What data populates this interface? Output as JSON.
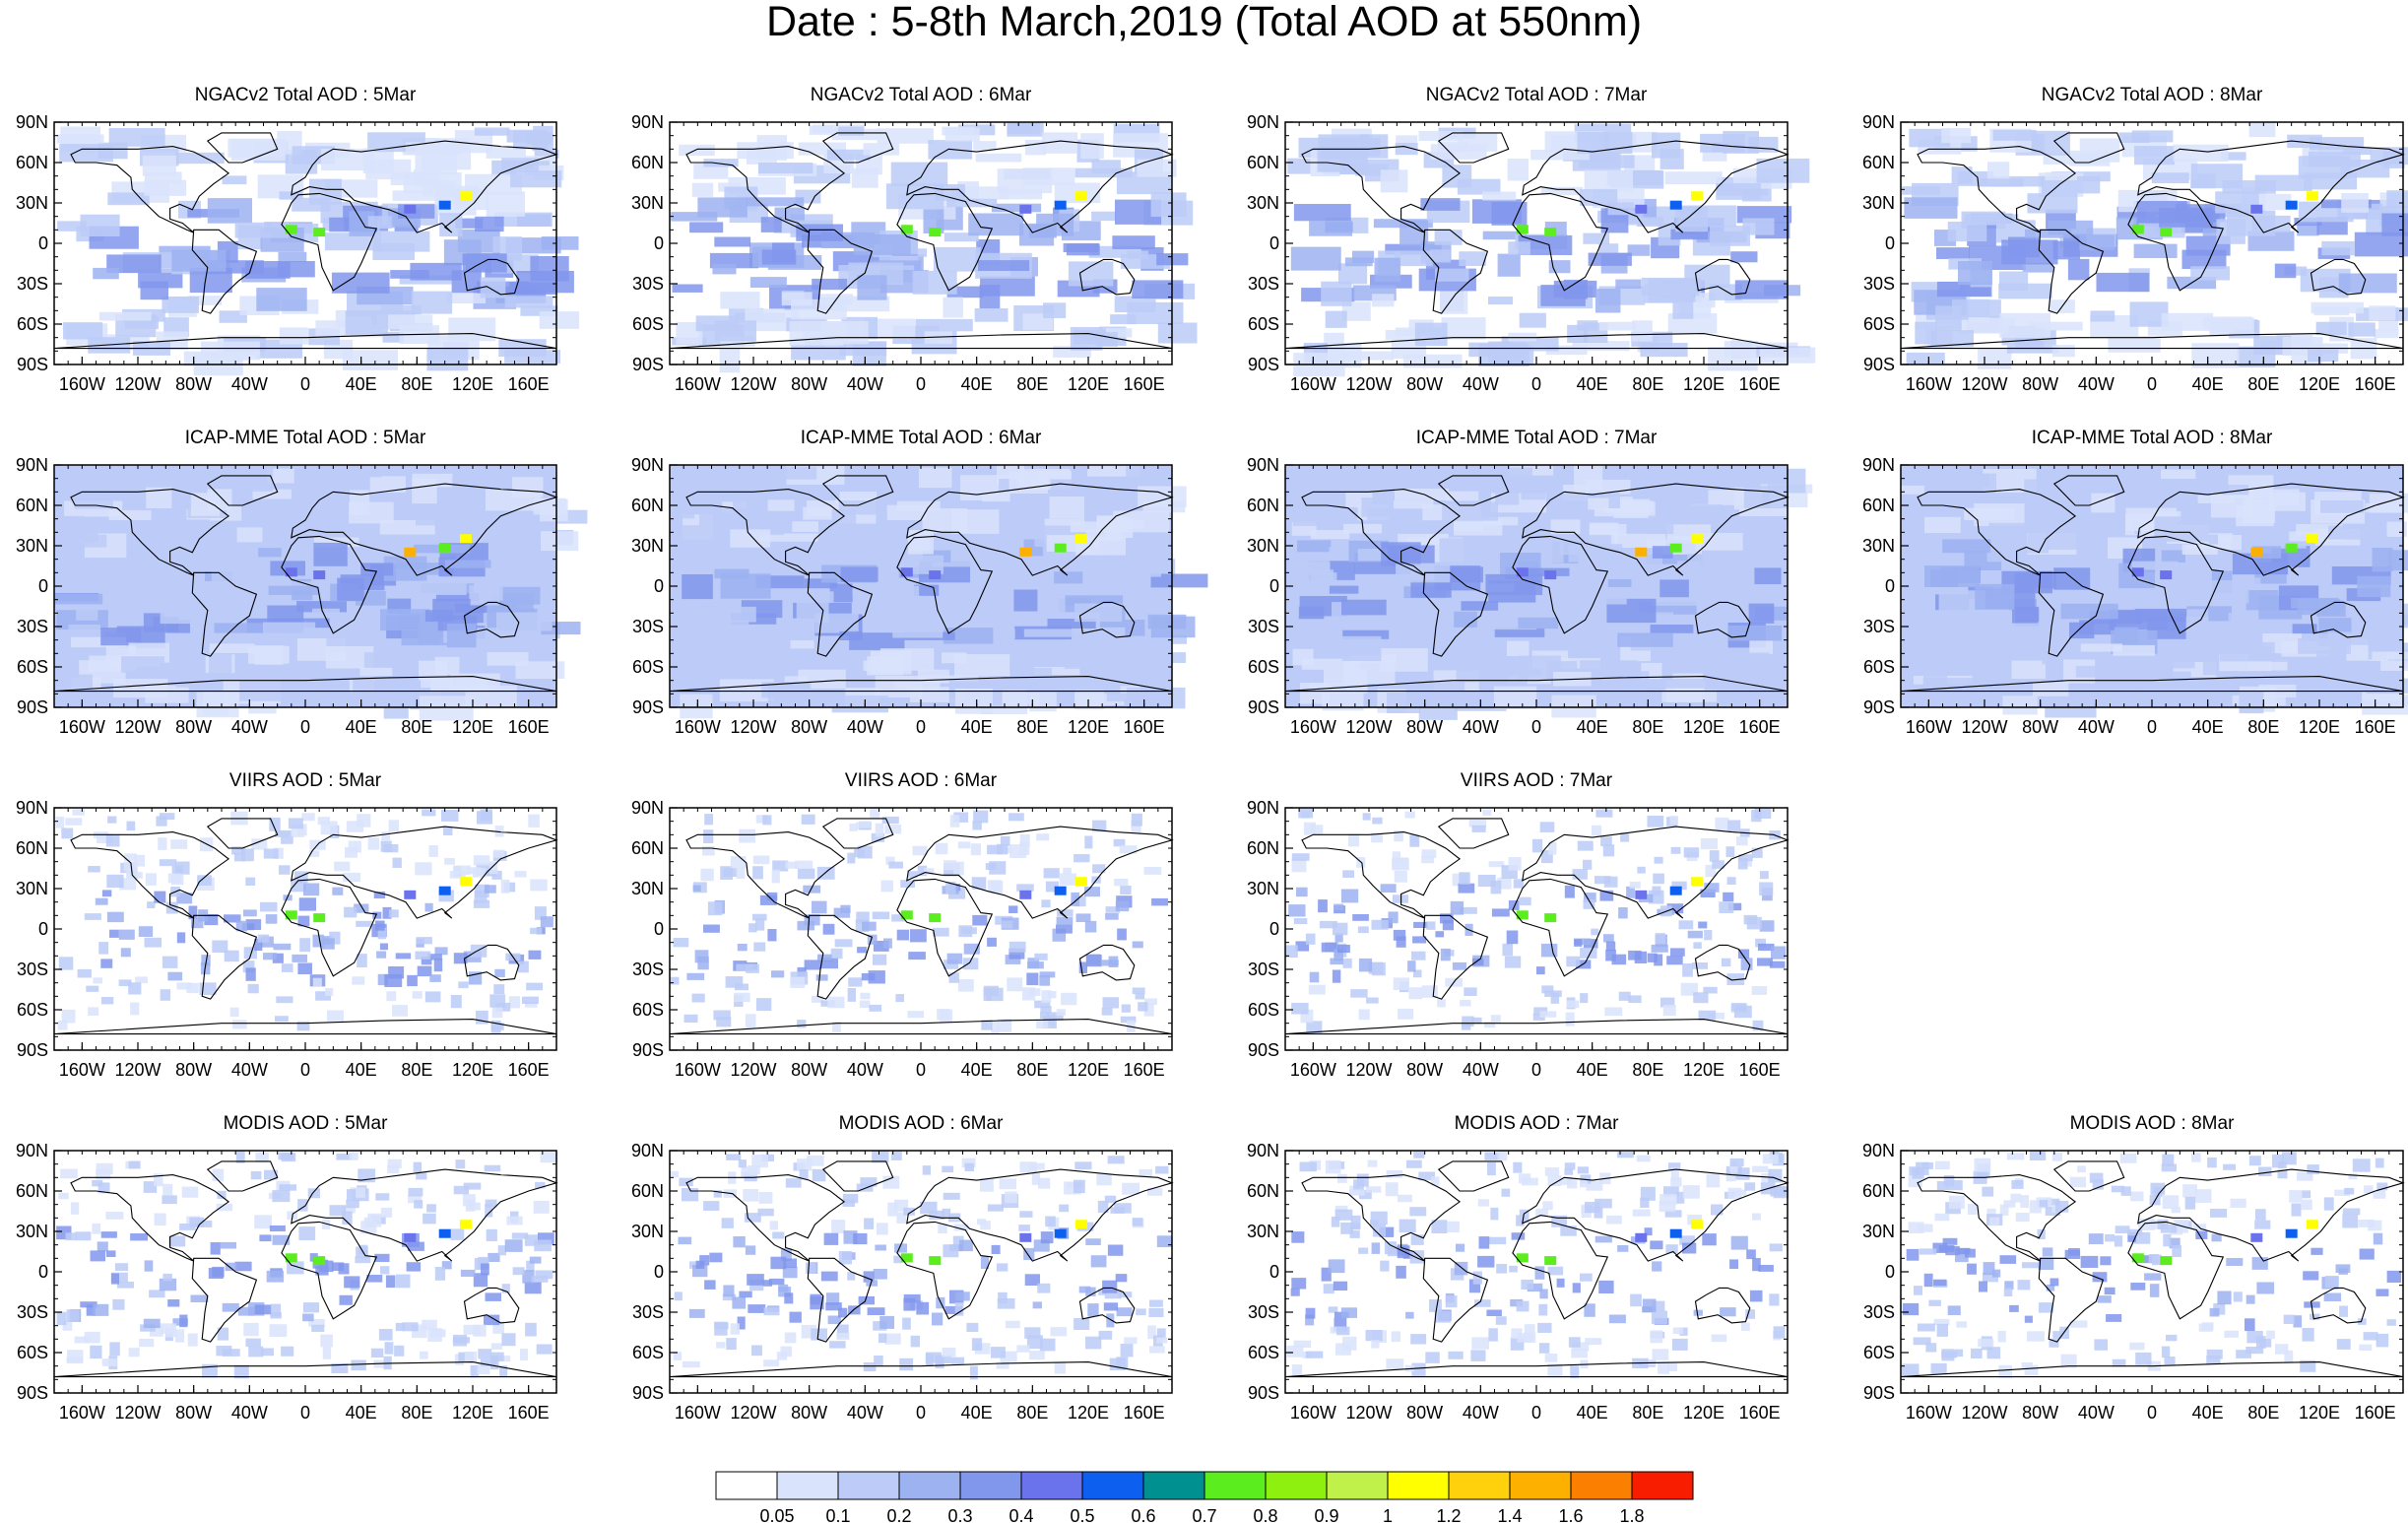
{
  "title": "Date : 5-8th March,2019 (Total AOD at 550nm)",
  "lat_labels": [
    "90N",
    "60N",
    "30N",
    "0",
    "30S",
    "60S",
    "90S"
  ],
  "lon_labels": [
    "160W",
    "120W",
    "80W",
    "40W",
    "0",
    "40E",
    "80E",
    "120E",
    "160E"
  ],
  "panels": [
    {
      "title": "NGACv2 Total AOD : 5Mar",
      "dataset": "NGACv2"
    },
    {
      "title": "NGACv2 Total AOD : 6Mar",
      "dataset": "NGACv2"
    },
    {
      "title": "NGACv2 Total AOD : 7Mar",
      "dataset": "NGACv2"
    },
    {
      "title": "NGACv2 Total AOD : 8Mar",
      "dataset": "NGACv2"
    },
    {
      "title": "ICAP-MME Total AOD : 5Mar",
      "dataset": "ICAP"
    },
    {
      "title": "ICAP-MME Total AOD : 6Mar",
      "dataset": "ICAP"
    },
    {
      "title": "ICAP-MME Total AOD : 7Mar",
      "dataset": "ICAP"
    },
    {
      "title": "ICAP-MME Total AOD : 8Mar",
      "dataset": "ICAP"
    },
    {
      "title": "VIIRS AOD : 5Mar",
      "dataset": "VIIRS"
    },
    {
      "title": "VIIRS AOD : 6Mar",
      "dataset": "VIIRS"
    },
    {
      "title": "VIIRS AOD : 7Mar",
      "dataset": "VIIRS"
    },
    {
      "title": "MODIS AOD : 5Mar",
      "dataset": "MODIS"
    },
    {
      "title": "MODIS AOD : 6Mar",
      "dataset": "MODIS"
    },
    {
      "title": "MODIS AOD : 7Mar",
      "dataset": "MODIS"
    },
    {
      "title": "MODIS AOD : 8Mar",
      "dataset": "MODIS"
    }
  ],
  "colorbar": {
    "colors": [
      "#ffffff",
      "#d9e3fb",
      "#bccbf7",
      "#9cb2f1",
      "#8197ec",
      "#6a72ec",
      "#0c5fef",
      "#019090",
      "#5ced1e",
      "#8ef00e",
      "#c0f04a",
      "#ffff00",
      "#fed10c",
      "#fdb000",
      "#fb7f00",
      "#f91d00"
    ],
    "labels": [
      "0.05",
      "0.1",
      "0.2",
      "0.3",
      "0.4",
      "0.5",
      "0.6",
      "0.7",
      "0.8",
      "0.9",
      "1",
      "1.2",
      "1.4",
      "1.6",
      "1.8"
    ]
  }
}
